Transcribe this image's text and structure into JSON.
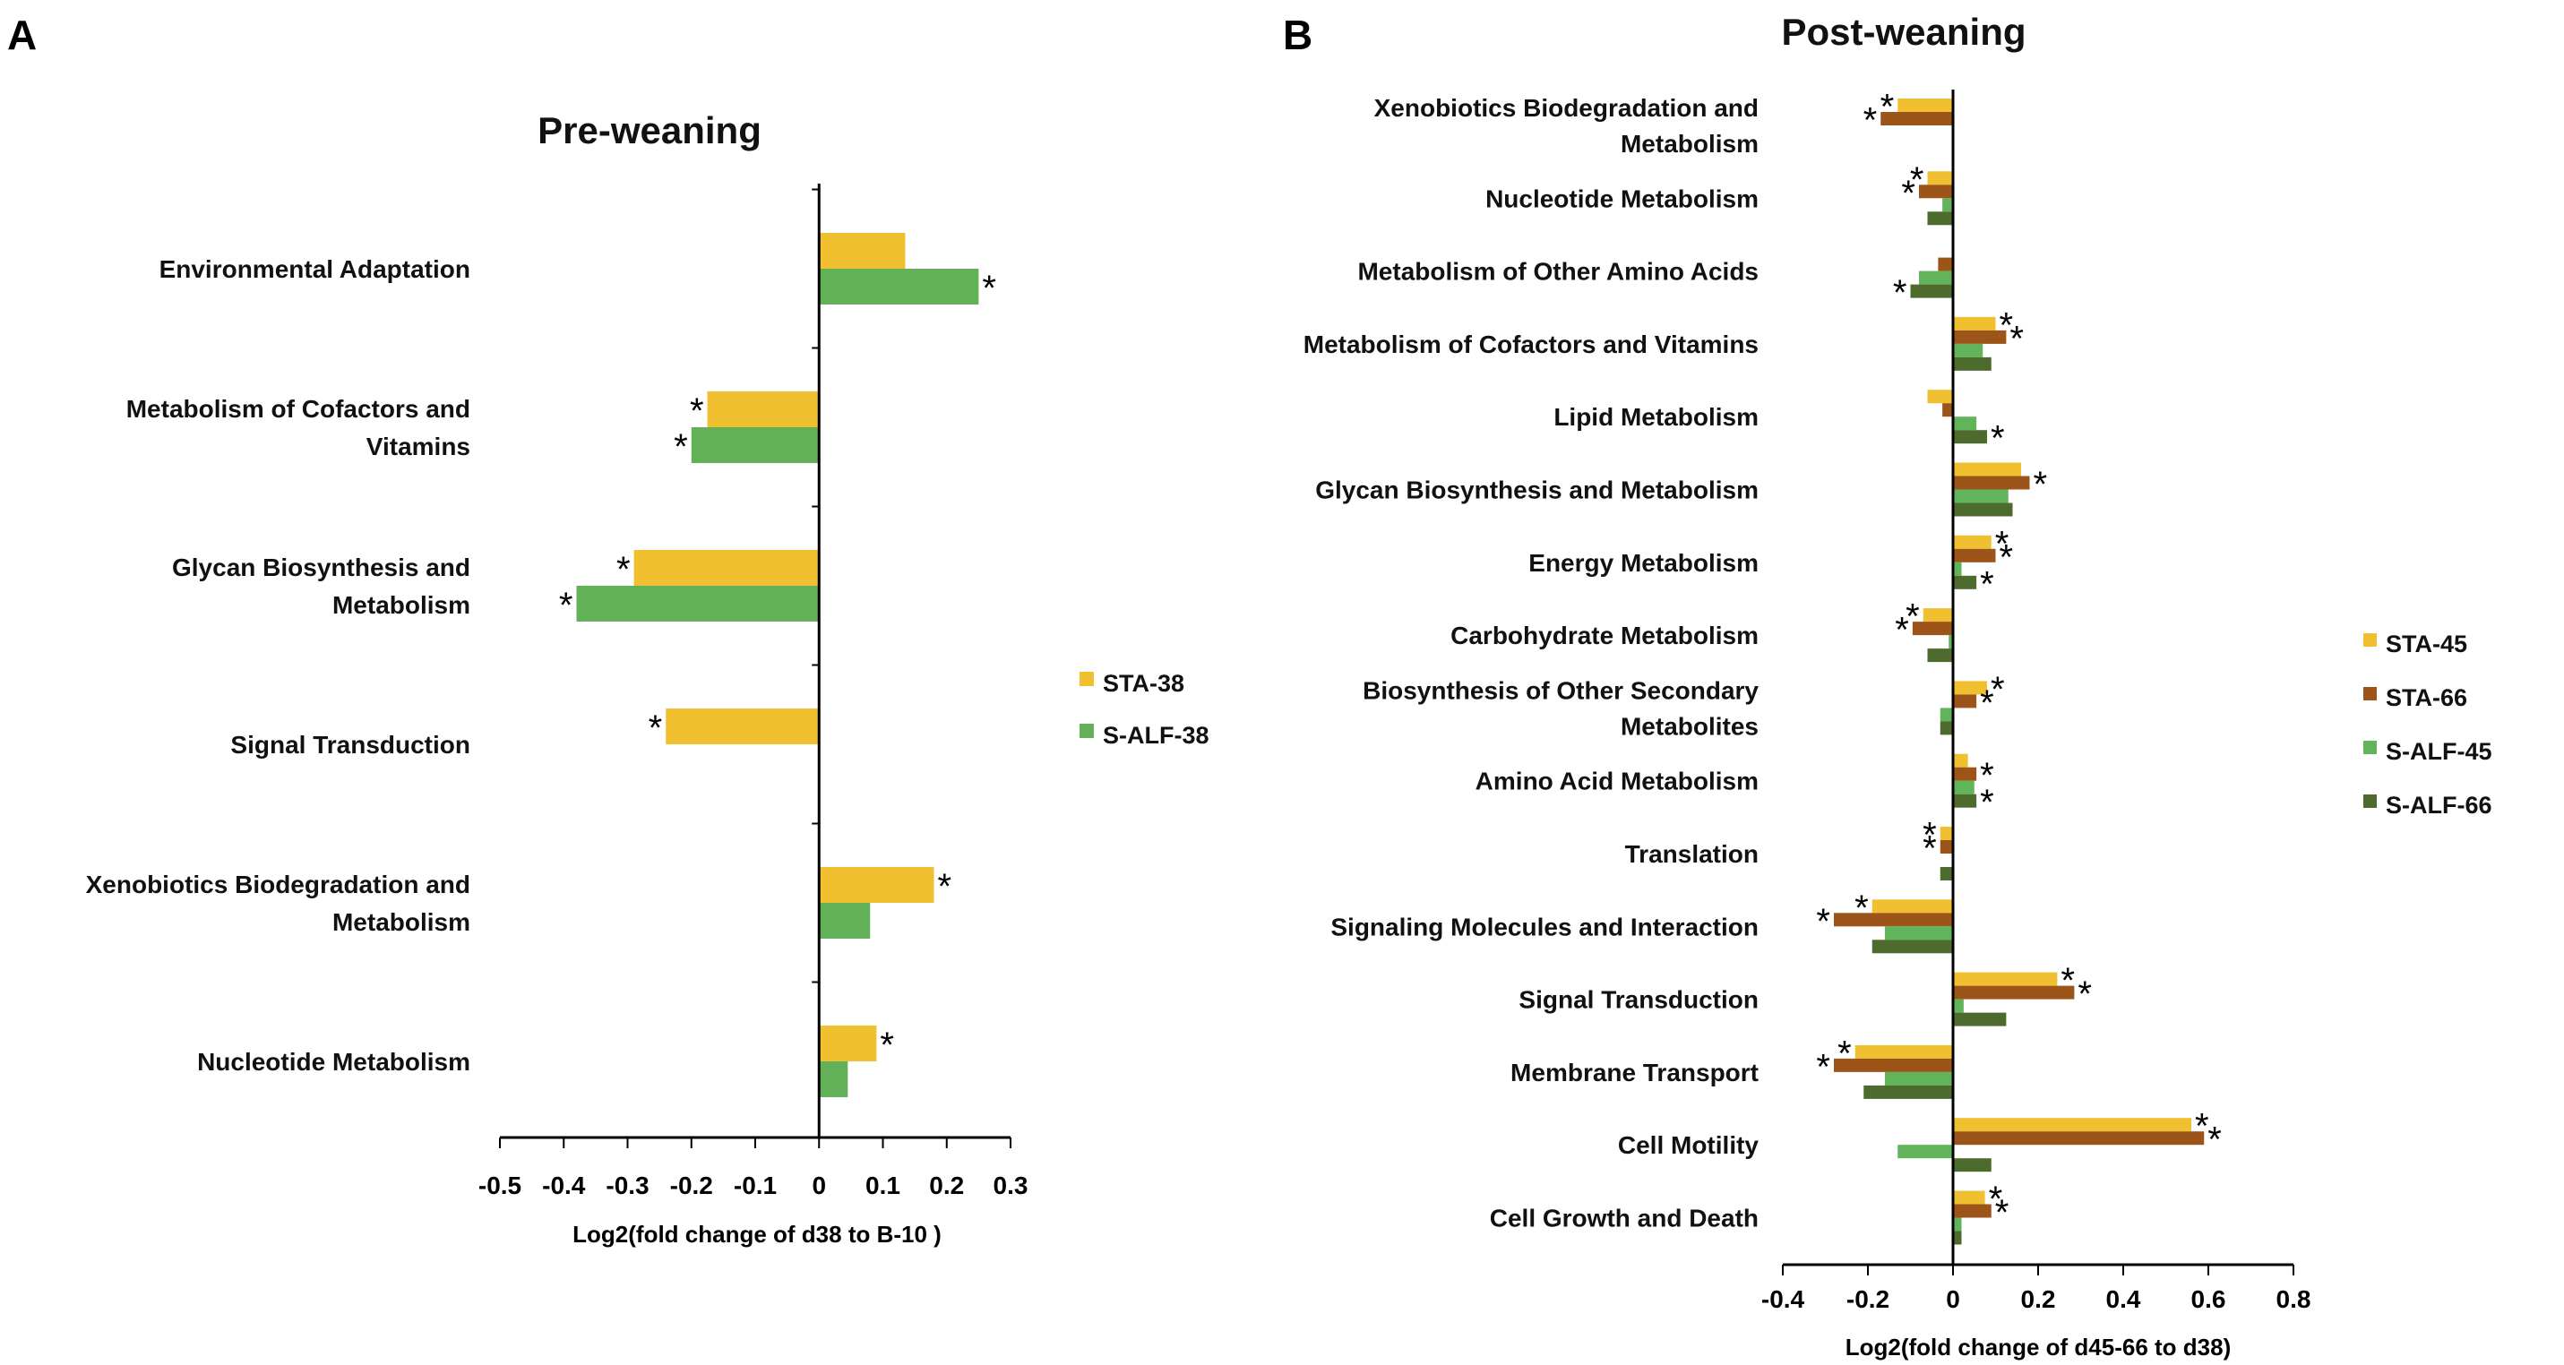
{
  "colors": {
    "STA-38": "#F0C030",
    "S-ALF-38": "#62B058",
    "STA-45": "#F0C030",
    "STA-66": "#9C5418",
    "S-ALF-45": "#62B45A",
    "S-ALF-66": "#4E6B2E"
  },
  "chart_data": [
    {
      "panel": "A",
      "type": "bar",
      "orientation": "horizontal",
      "title": "Pre-weaning",
      "xlabel": "Log2(fold change of d38 to B-10 )",
      "ylabel": "",
      "xlim": [
        -0.5,
        0.3
      ],
      "x_ticks": [
        "-0.5",
        "-0.4",
        "-0.3",
        "-0.2",
        "-0.1",
        "0",
        "0.1",
        "0.2",
        "0.3"
      ],
      "legend_position": "right",
      "categories": [
        [
          "Environmental Adaptation"
        ],
        [
          "Metabolism of Cofactors and",
          "Vitamins"
        ],
        [
          "Glycan Biosynthesis and",
          "Metabolism"
        ],
        [
          "Signal Transduction"
        ],
        [
          "Xenobiotics Biodegradation and",
          "Metabolism"
        ],
        [
          "Nucleotide Metabolism"
        ]
      ],
      "series": [
        {
          "name": "STA-38",
          "values": [
            0.135,
            -0.175,
            -0.29,
            -0.24,
            0.18,
            0.09
          ],
          "significant": [
            false,
            true,
            true,
            true,
            true,
            true
          ]
        },
        {
          "name": "S-ALF-38",
          "values": [
            0.25,
            -0.2,
            -0.38,
            0,
            0.08,
            0.045
          ],
          "significant": [
            true,
            true,
            true,
            false,
            false,
            false
          ]
        }
      ],
      "significance_marker": "*"
    },
    {
      "panel": "B",
      "type": "bar",
      "orientation": "horizontal",
      "title": "Post-weaning",
      "xlabel": "Log2(fold change of d45-66 to d38)",
      "ylabel": "",
      "xlim": [
        -0.4,
        0.8
      ],
      "x_ticks": [
        "-0.4",
        "-0.2",
        "0",
        "0.2",
        "0.4",
        "0.6",
        "0.8"
      ],
      "legend_position": "right",
      "categories": [
        [
          "Xenobiotics Biodegradation and",
          "Metabolism"
        ],
        [
          "Nucleotide Metabolism"
        ],
        [
          "Metabolism of Other Amino Acids"
        ],
        [
          "Metabolism of Cofactors and Vitamins"
        ],
        [
          "Lipid Metabolism"
        ],
        [
          "Glycan Biosynthesis and Metabolism"
        ],
        [
          "Energy Metabolism"
        ],
        [
          "Carbohydrate Metabolism"
        ],
        [
          "Biosynthesis of Other Secondary",
          "Metabolites"
        ],
        [
          "Amino Acid Metabolism"
        ],
        [
          "Translation"
        ],
        [
          "Signaling Molecules and Interaction"
        ],
        [
          "Signal Transduction"
        ],
        [
          "Membrane Transport"
        ],
        [
          "Cell Motility"
        ],
        [
          "Cell Growth and Death"
        ]
      ],
      "series": [
        {
          "name": "STA-45",
          "values": [
            -0.13,
            -0.06,
            0,
            0.1,
            -0.06,
            0.16,
            0.09,
            -0.07,
            0.08,
            0.035,
            -0.03,
            -0.19,
            0.245,
            -0.23,
            0.56,
            0.075
          ],
          "significant": [
            true,
            true,
            false,
            true,
            false,
            false,
            true,
            true,
            true,
            false,
            true,
            true,
            true,
            true,
            true,
            true
          ]
        },
        {
          "name": "STA-66",
          "values": [
            -0.17,
            -0.08,
            -0.035,
            0.125,
            -0.025,
            0.18,
            0.1,
            -0.095,
            0.055,
            0.055,
            -0.03,
            -0.28,
            0.285,
            -0.28,
            0.59,
            0.09
          ],
          "significant": [
            true,
            true,
            false,
            true,
            false,
            true,
            true,
            true,
            true,
            true,
            true,
            true,
            true,
            true,
            true,
            true
          ]
        },
        {
          "name": "S-ALF-45",
          "values": [
            0,
            -0.025,
            -0.08,
            0.07,
            0.055,
            0.13,
            0.02,
            -0.01,
            -0.03,
            0.05,
            0,
            -0.16,
            0.025,
            -0.16,
            -0.13,
            0.02
          ],
          "significant": [
            false,
            false,
            false,
            false,
            false,
            false,
            false,
            false,
            false,
            false,
            false,
            false,
            false,
            false,
            false,
            false
          ]
        },
        {
          "name": "S-ALF-66",
          "values": [
            0,
            -0.06,
            -0.1,
            0.09,
            0.08,
            0.14,
            0.055,
            -0.06,
            -0.03,
            0.055,
            -0.03,
            -0.19,
            0.125,
            -0.21,
            0.09,
            0.02
          ],
          "significant": [
            false,
            false,
            true,
            false,
            true,
            false,
            true,
            false,
            false,
            true,
            false,
            false,
            false,
            false,
            false,
            false
          ]
        }
      ],
      "significance_marker": "*"
    }
  ]
}
